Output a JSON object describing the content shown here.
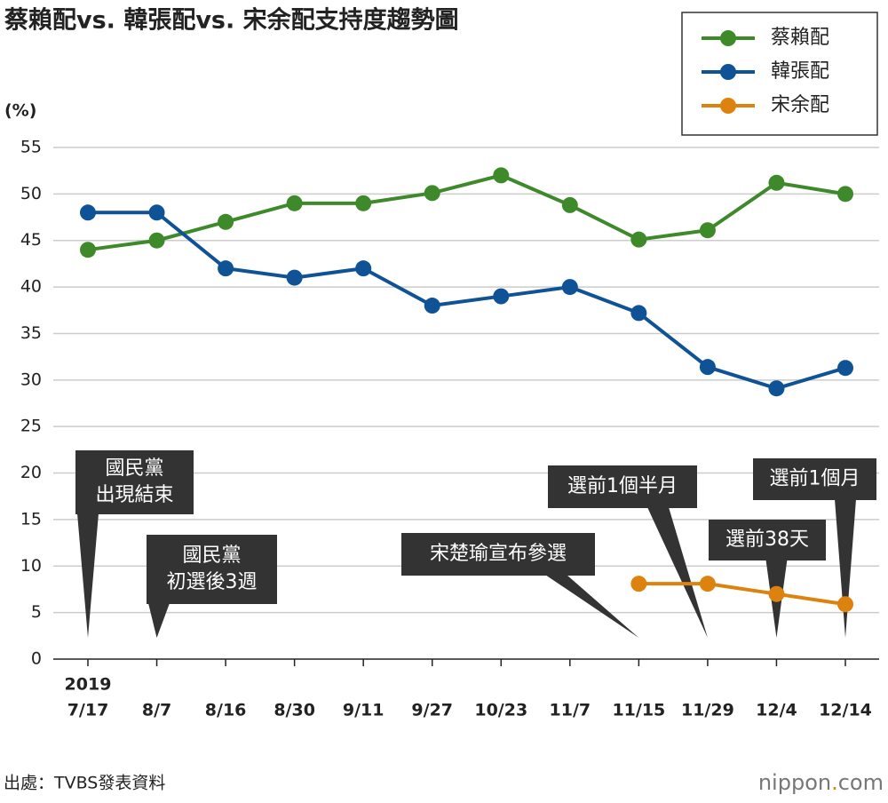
{
  "chart_data": {
    "type": "line",
    "title": "蔡賴配vs. 韓張配vs. 宋余配支持度趨勢圖",
    "y_unit_label": "(%)",
    "year_label": "2019",
    "categories": [
      "7/17",
      "8/7",
      "8/16",
      "8/30",
      "9/11",
      "9/27",
      "10/23",
      "11/7",
      "11/15",
      "11/29",
      "12/4",
      "12/14"
    ],
    "series": [
      {
        "name": "蔡賴配",
        "color": "#3e8a2a",
        "values": [
          44,
          45,
          47,
          49,
          49,
          50.1,
          52,
          48.8,
          45.1,
          46.1,
          51.2,
          50
        ]
      },
      {
        "name": "韓張配",
        "color": "#0f5396",
        "values": [
          48,
          48,
          42,
          41,
          42,
          38,
          39,
          40,
          37.2,
          31.4,
          29.1,
          31.3
        ]
      },
      {
        "name": "宋余配",
        "color": "#de820f",
        "values": [
          null,
          null,
          null,
          null,
          null,
          null,
          null,
          null,
          8.1,
          8.1,
          7,
          5.9
        ]
      }
    ],
    "ylim": [
      0,
      55
    ],
    "yticks": [
      0,
      5,
      10,
      15,
      20,
      25,
      30,
      35,
      40,
      45,
      50,
      55
    ],
    "grid": true,
    "legend": "top-right",
    "annotations": [
      {
        "lines": [
          "國民黨",
          "出現結束"
        ],
        "x": "7/17"
      },
      {
        "lines": [
          "國民黨",
          "初選後3週"
        ],
        "x": "8/7"
      },
      {
        "lines": [
          "宋楚瑜宣布參選"
        ],
        "x": "11/15"
      },
      {
        "lines": [
          "選前1個半月"
        ],
        "x": "11/29"
      },
      {
        "lines": [
          "選前38天"
        ],
        "x": "12/4"
      },
      {
        "lines": [
          "選前1個月"
        ],
        "x": "12/14"
      }
    ],
    "source": "出處：TVBS發表資料",
    "brand": [
      "nippon",
      ".",
      "com"
    ]
  }
}
